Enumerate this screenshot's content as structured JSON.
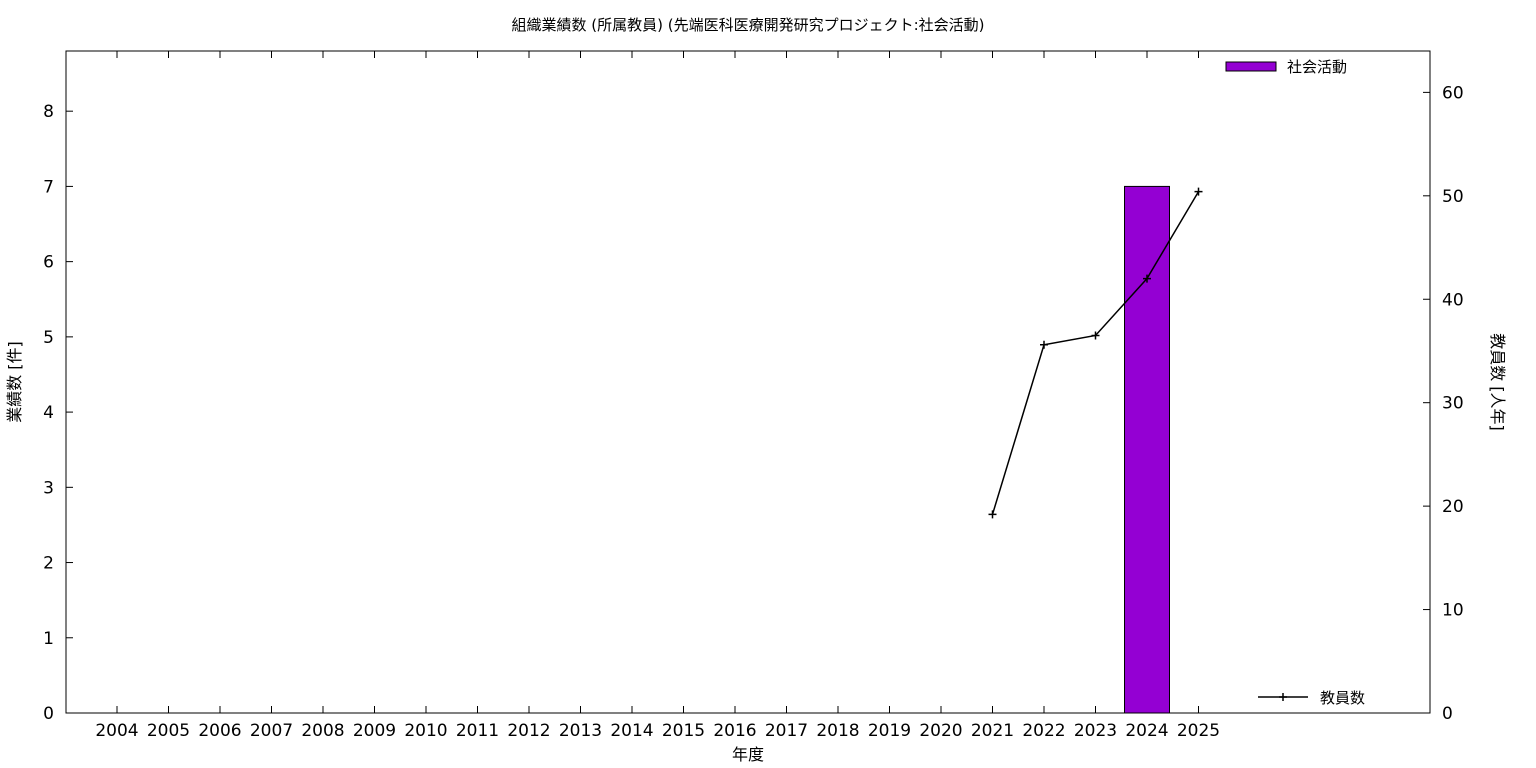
{
  "chart_data": {
    "type": "bar",
    "title": "組織業績数 (所属教員) (先端医科医療開発研究プロジェクト:社会活動)",
    "xlabel": "年度",
    "ylabel": "業績数 [件]",
    "y2label": "教員数 [人年]",
    "categories": [
      "2004",
      "2005",
      "2006",
      "2007",
      "2008",
      "2009",
      "2010",
      "2011",
      "2012",
      "2013",
      "2014",
      "2015",
      "2016",
      "2017",
      "2018",
      "2019",
      "2020",
      "2021",
      "2022",
      "2023",
      "2024",
      "2025"
    ],
    "ylim": [
      0,
      8.8
    ],
    "y2lim": [
      0,
      64
    ],
    "yticks": [
      "0",
      "1",
      "2",
      "3",
      "4",
      "5",
      "6",
      "7",
      "8"
    ],
    "y2ticks": [
      "0",
      "10",
      "20",
      "30",
      "40",
      "50",
      "60"
    ],
    "grid": false,
    "legend_placement": "top-right",
    "series": [
      {
        "name": "社会活動",
        "type": "bar",
        "axis": "left",
        "color": "#9400d3",
        "values": [
          null,
          null,
          null,
          null,
          null,
          null,
          null,
          null,
          null,
          null,
          null,
          null,
          null,
          null,
          null,
          null,
          null,
          null,
          null,
          null,
          7,
          null
        ]
      },
      {
        "name": "教員数",
        "type": "line",
        "axis": "right",
        "color": "#000000",
        "values": [
          null,
          null,
          null,
          null,
          null,
          null,
          null,
          null,
          null,
          null,
          null,
          null,
          null,
          null,
          null,
          null,
          null,
          19.2,
          35.6,
          36.5,
          42,
          50.4
        ]
      }
    ]
  }
}
